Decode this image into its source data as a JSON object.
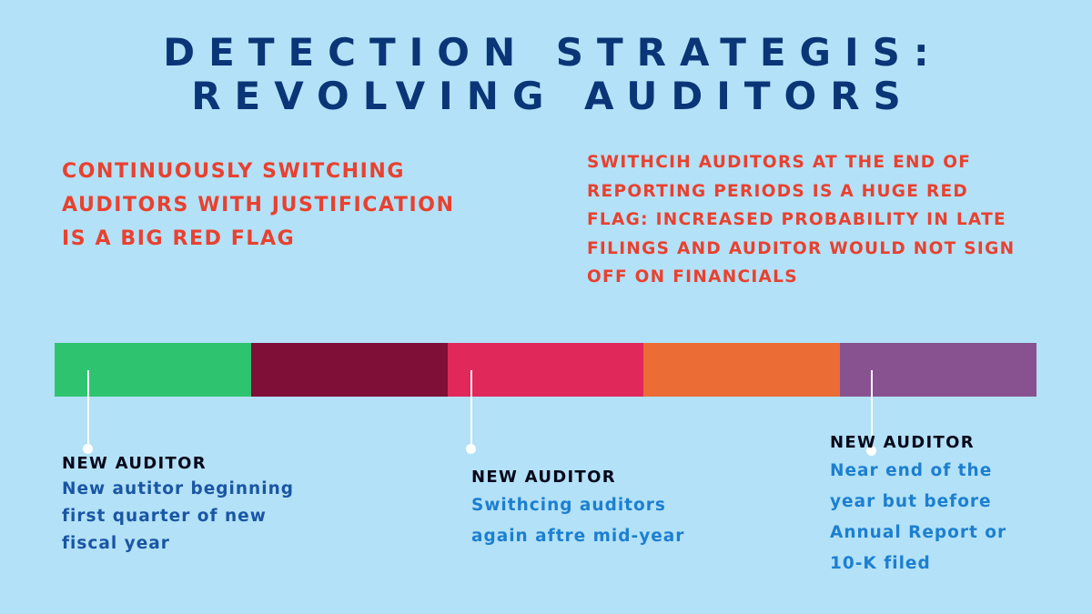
{
  "title": {
    "line1": "DETECTION STRATEGIS:",
    "line2": "REVOLVING AUDITORS"
  },
  "left_callout": {
    "lines": [
      "CONTINUOUSLY SWITCHING",
      "AUDITORS WITH JUSTIFICATION",
      "IS A BIG RED FLAG"
    ]
  },
  "right_callout": {
    "lines": [
      "SWITHCIH AUDITORS AT THE END OF",
      "REPORTING PERIODS IS A HUGE RED",
      "FLAG: INCREASED PROBABILITY IN LATE",
      "FILINGS AND AUDITOR WOULD NOT SIGN",
      "OFF ON FINANCIALS"
    ]
  },
  "timeline": {
    "segment_colors": [
      "#2ec46f",
      "#7f0f37",
      "#e0285b",
      "#ec6c35",
      "#87528f"
    ]
  },
  "notes": [
    {
      "label": "NEW AUDITOR",
      "lines": [
        "New autitor beginning",
        "first quarter of new",
        "fiscal year"
      ]
    },
    {
      "label": "NEW AUDITOR",
      "lines": [
        "Swithcing auditors",
        "again aftre mid-year"
      ]
    },
    {
      "label": "NEW AUDITOR",
      "lines": [
        "Near end of the",
        "year but before",
        "Annual Report or",
        "10-K filed"
      ]
    }
  ]
}
